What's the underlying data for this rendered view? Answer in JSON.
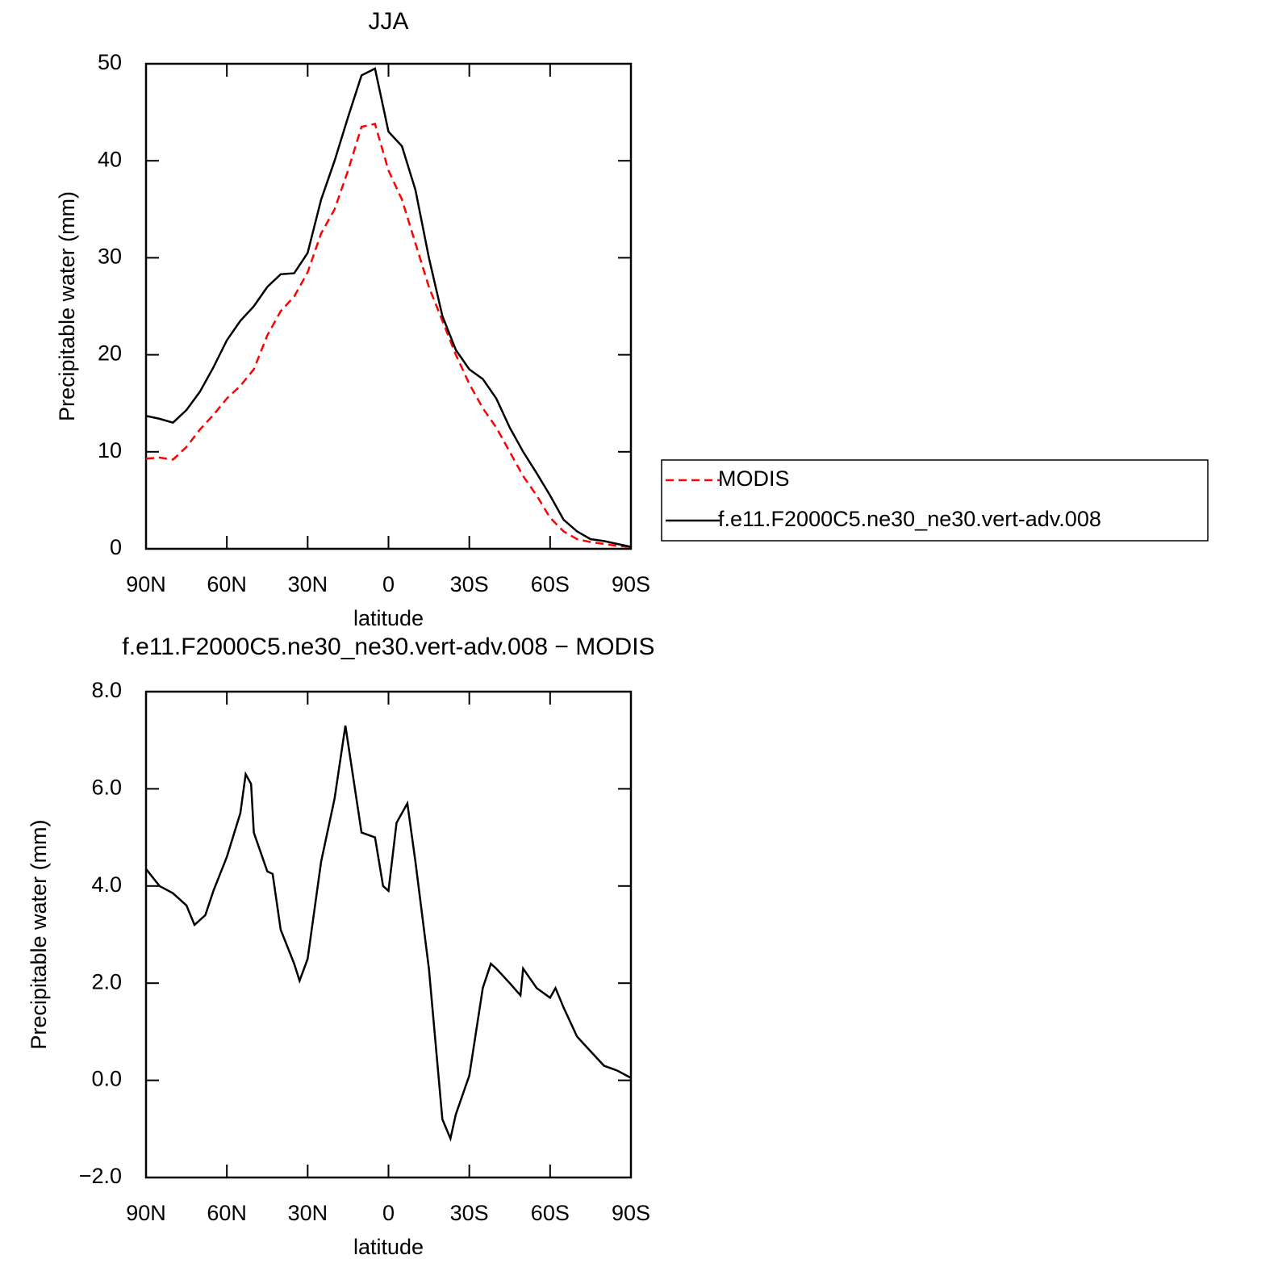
{
  "chart_data": [
    {
      "type": "line",
      "title": "JJA",
      "xlabel": "latitude",
      "ylabel": "Precipitable water (mm)",
      "x": [
        90,
        85,
        80,
        75,
        70,
        65,
        60,
        55,
        50,
        45,
        40,
        35,
        30,
        25,
        20,
        15,
        10,
        5,
        0,
        -5,
        -10,
        -15,
        -20,
        -25,
        -30,
        -35,
        -40,
        -45,
        -50,
        -55,
        -60,
        -65,
        -70,
        -75,
        -80,
        -85,
        -90
      ],
      "series": [
        {
          "name": "MODIS",
          "color": "#ff0000",
          "linestyle": "dashed",
          "values": [
            9.3,
            9.4,
            9.2,
            10.5,
            12.3,
            13.8,
            15.5,
            16.8,
            18.5,
            22,
            24.5,
            26,
            28.5,
            32.5,
            35,
            39,
            43.5,
            43.8,
            39,
            36,
            31.5,
            27,
            23.5,
            20,
            17,
            14.5,
            12.5,
            10,
            7.5,
            5.5,
            3.2,
            1.8,
            1.0,
            0.7,
            0.5,
            0.3,
            0.2
          ]
        },
        {
          "name": "f.e11.F2000C5.ne30_ne30.vert-adv.008",
          "color": "#000000",
          "linestyle": "solid",
          "values": [
            13.7,
            13.4,
            13.0,
            14.3,
            16.2,
            18.7,
            21.5,
            23.5,
            25.0,
            27.0,
            28.3,
            28.4,
            30.5,
            36,
            40,
            44.5,
            48.8,
            49.5,
            43,
            41.5,
            37,
            30,
            24,
            20.5,
            18.5,
            17.5,
            15.5,
            12.5,
            10,
            7.8,
            5.5,
            3,
            1.8,
            1.0,
            0.8,
            0.5,
            0.2
          ]
        }
      ],
      "xlim": [
        90,
        -90
      ],
      "xticks": [
        {
          "value": 90,
          "label": "90N"
        },
        {
          "value": 60,
          "label": "60N"
        },
        {
          "value": 30,
          "label": "30N"
        },
        0,
        {
          "value": -30,
          "label": "30S"
        },
        {
          "value": -60,
          "label": "60S"
        },
        {
          "value": -90,
          "label": "90S"
        }
      ],
      "ylim": [
        0,
        50
      ],
      "yticks": [
        0,
        10,
        20,
        30,
        40,
        50
      ],
      "legend": "right"
    },
    {
      "type": "line",
      "title": "f.e11.F2000C5.ne30_ne30.vert-adv.008 − MODIS",
      "xlabel": "latitude",
      "ylabel": "Precipitable water (mm)",
      "x": [
        90,
        85,
        80,
        75,
        72,
        68,
        65,
        60,
        55,
        53,
        51,
        50,
        45,
        43,
        40,
        35,
        33,
        30,
        25,
        20,
        16,
        13,
        10,
        5,
        2,
        0,
        -3,
        -7,
        -10,
        -15,
        -20,
        -23,
        -25,
        -30,
        -35,
        -38,
        -40,
        -45,
        -49,
        -50,
        -55,
        -60,
        -62,
        -65,
        -70,
        -75,
        -80,
        -85,
        -90
      ],
      "values": [
        4.35,
        4.0,
        3.85,
        3.6,
        3.2,
        3.4,
        3.9,
        4.6,
        5.5,
        6.3,
        6.1,
        5.1,
        4.3,
        4.25,
        3.1,
        2.4,
        2.05,
        2.5,
        4.5,
        5.8,
        7.3,
        6.2,
        5.1,
        5.0,
        4.0,
        3.9,
        5.3,
        5.7,
        4.5,
        2.3,
        -0.8,
        -1.2,
        -0.7,
        0.1,
        1.9,
        2.4,
        2.3,
        2.0,
        1.75,
        2.3,
        1.9,
        1.7,
        1.9,
        1.5,
        0.9,
        0.6,
        0.3,
        0.2,
        0.05
      ],
      "color": "#000000",
      "xlim": [
        90,
        -90
      ],
      "xticks": [
        {
          "value": 90,
          "label": "90N"
        },
        {
          "value": 60,
          "label": "60N"
        },
        {
          "value": 30,
          "label": "30N"
        },
        0,
        {
          "value": -30,
          "label": "30S"
        },
        {
          "value": -60,
          "label": "60S"
        },
        {
          "value": -90,
          "label": "90S"
        }
      ],
      "ylim": [
        -2,
        8
      ],
      "yticks": [
        {
          "value": -2,
          "label": "−2.0"
        },
        {
          "value": 0,
          "label": "0.0"
        },
        {
          "value": 2,
          "label": "2.0"
        },
        {
          "value": 4,
          "label": "4.0"
        },
        {
          "value": 6,
          "label": "6.0"
        },
        {
          "value": 8,
          "label": "8.0"
        }
      ]
    }
  ]
}
